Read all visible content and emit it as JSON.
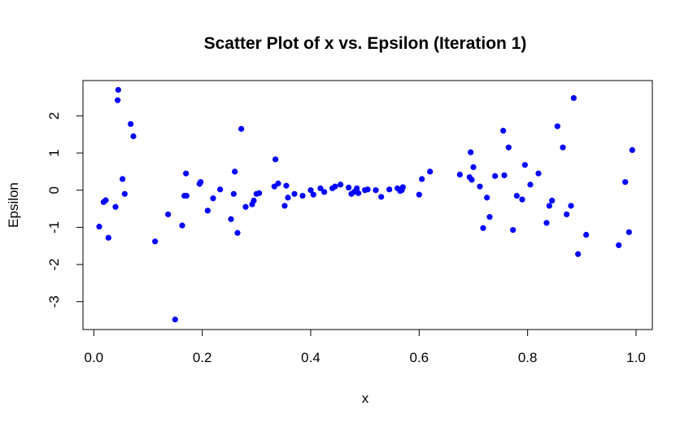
{
  "chart_data": {
    "type": "scatter",
    "title": "Scatter Plot of x vs. Epsilon (Iteration 1)",
    "xlabel": "x",
    "ylabel": "Epsilon",
    "xlim": [
      -0.02,
      1.03
    ],
    "ylim": [
      -3.75,
      2.95
    ],
    "x_ticks": [
      0.0,
      0.2,
      0.4,
      0.6,
      0.8,
      1.0
    ],
    "x_tick_labels": [
      "0.0",
      "0.2",
      "0.4",
      "0.6",
      "0.8",
      "1.0"
    ],
    "y_ticks": [
      -3,
      -2,
      -1,
      0,
      1,
      2
    ],
    "y_tick_labels": [
      "-3",
      "-2",
      "-1",
      "0",
      "1",
      "2"
    ],
    "grid": false,
    "point_color": "#0000ff",
    "series": [
      {
        "x": [
          0.01,
          0.018,
          0.022,
          0.027,
          0.04,
          0.044,
          0.045,
          0.053,
          0.057,
          0.068,
          0.073,
          0.113,
          0.137,
          0.15,
          0.163,
          0.167,
          0.17,
          0.171,
          0.195,
          0.197,
          0.21,
          0.22,
          0.233,
          0.253,
          0.258,
          0.26,
          0.265,
          0.272,
          0.28,
          0.292,
          0.295,
          0.3,
          0.305,
          0.333,
          0.335,
          0.34,
          0.352,
          0.355,
          0.358,
          0.37,
          0.385,
          0.4,
          0.405,
          0.418,
          0.425,
          0.44,
          0.445,
          0.455,
          0.47,
          0.475,
          0.48,
          0.485,
          0.488,
          0.5,
          0.505,
          0.52,
          0.53,
          0.545,
          0.56,
          0.565,
          0.568,
          0.57,
          0.6,
          0.605,
          0.62,
          0.675,
          0.693,
          0.695,
          0.697,
          0.7,
          0.712,
          0.718,
          0.725,
          0.73,
          0.74,
          0.755,
          0.757,
          0.765,
          0.773,
          0.78,
          0.79,
          0.795,
          0.805,
          0.82,
          0.835,
          0.84,
          0.845,
          0.855,
          0.865,
          0.872,
          0.88,
          0.885,
          0.893,
          0.908,
          0.968,
          0.98,
          0.987,
          0.993
        ],
        "y": [
          -0.98,
          -0.32,
          -0.27,
          -1.28,
          -0.45,
          2.42,
          2.7,
          0.3,
          -0.1,
          1.78,
          1.45,
          -1.38,
          -0.65,
          -3.48,
          -0.95,
          -0.15,
          0.45,
          -0.15,
          0.17,
          0.22,
          -0.55,
          -0.22,
          0.02,
          -0.78,
          -0.1,
          0.5,
          -1.15,
          1.65,
          -0.45,
          -0.38,
          -0.28,
          -0.1,
          -0.08,
          0.1,
          0.83,
          0.18,
          -0.42,
          0.12,
          -0.2,
          -0.1,
          -0.15,
          0.0,
          -0.12,
          0.05,
          -0.05,
          0.05,
          0.1,
          0.15,
          0.07,
          -0.1,
          -0.05,
          0.05,
          -0.08,
          0.0,
          0.02,
          0.0,
          -0.18,
          0.02,
          0.05,
          -0.02,
          0.0,
          0.08,
          -0.12,
          0.3,
          0.5,
          0.42,
          0.35,
          1.02,
          0.28,
          0.62,
          0.1,
          -1.02,
          -0.2,
          -0.72,
          0.38,
          1.6,
          0.4,
          1.15,
          -1.07,
          -0.15,
          -0.25,
          0.68,
          0.15,
          0.45,
          -0.88,
          -0.42,
          -0.28,
          1.72,
          1.15,
          -0.65,
          -0.42,
          2.48,
          -1.72,
          -1.2,
          -1.48,
          0.22,
          -1.13,
          1.08
        ]
      }
    ]
  }
}
